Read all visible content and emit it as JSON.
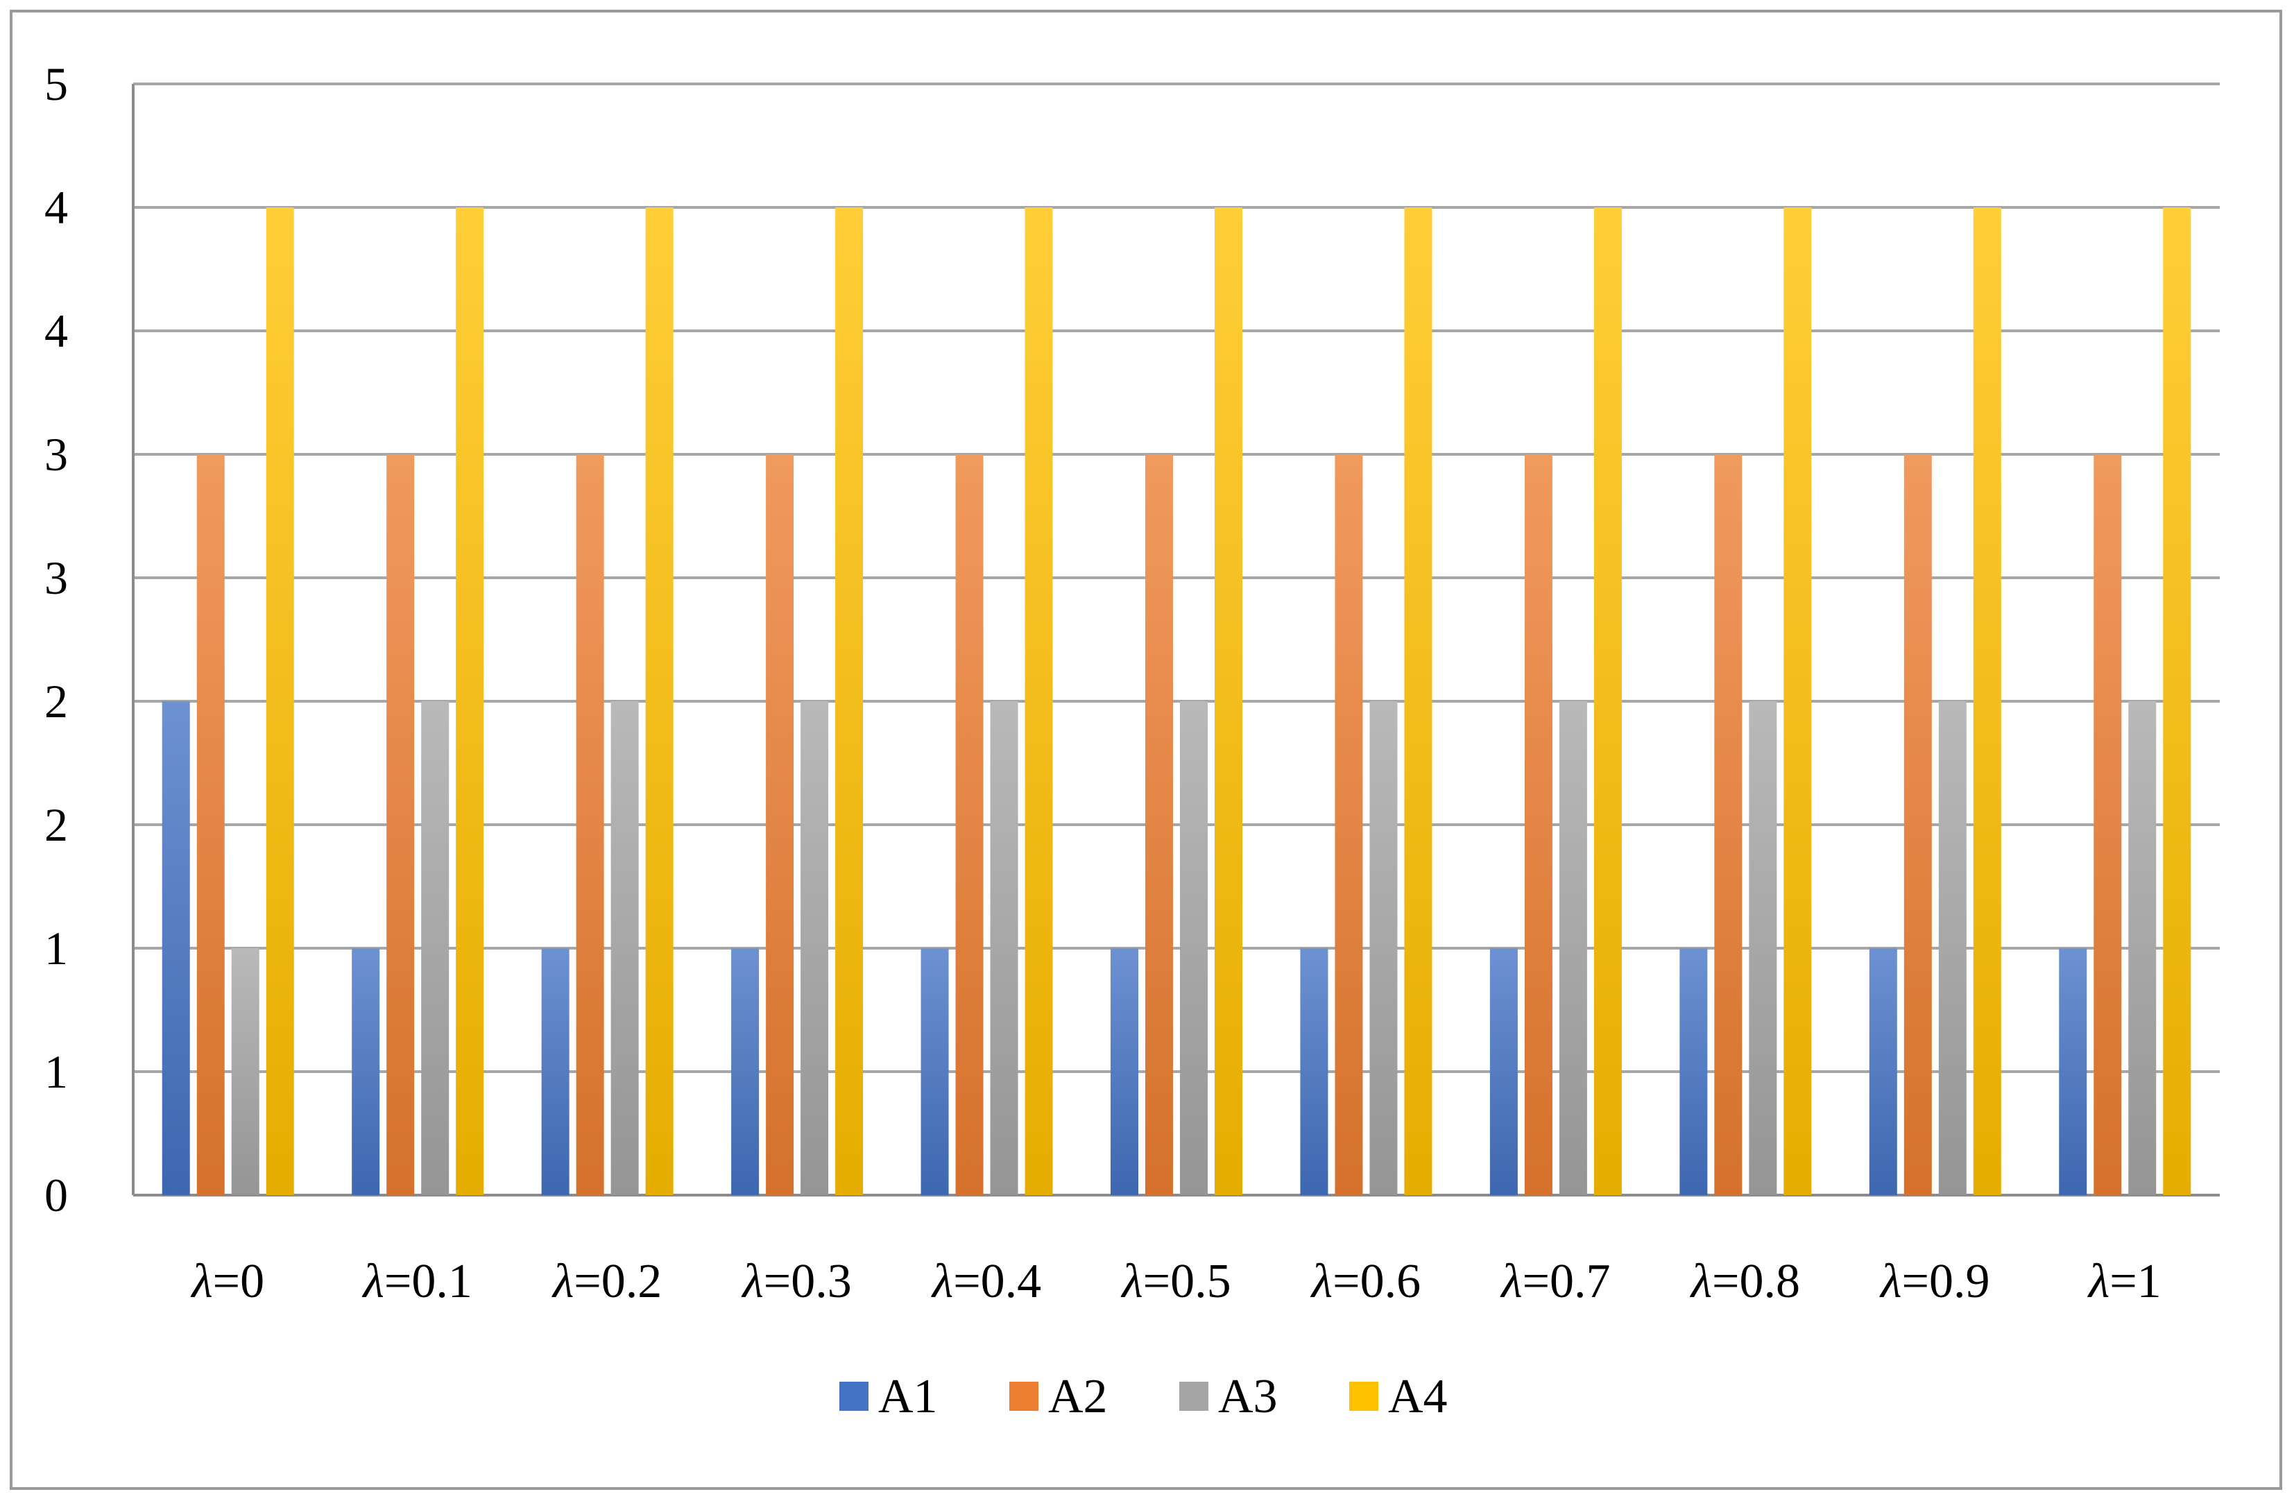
{
  "chart_data": {
    "type": "bar",
    "title": "",
    "xlabel": "",
    "ylabel": "",
    "categories_prefix": "λ",
    "categories": [
      "=0",
      "=0.1",
      "=0.2",
      "=0.3",
      "=0.4",
      "=0.5",
      "=0.6",
      "=0.7",
      "=0.8",
      "=0.9",
      "=1"
    ],
    "y_ticks": [
      "0",
      "1",
      "1",
      "2",
      "2",
      "3",
      "3",
      "4",
      "4",
      "5"
    ],
    "ylim": [
      0,
      4.5
    ],
    "grid": true,
    "legend_position": "bottom",
    "series": [
      {
        "name": "A1",
        "color": "#4472C4",
        "values": [
          2,
          1,
          1,
          1,
          1,
          1,
          1,
          1,
          1,
          1,
          1
        ]
      },
      {
        "name": "A2",
        "color": "#ED7D31",
        "values": [
          3,
          3,
          3,
          3,
          3,
          3,
          3,
          3,
          3,
          3,
          3
        ]
      },
      {
        "name": "A3",
        "color": "#A5A5A5",
        "values": [
          1,
          2,
          2,
          2,
          2,
          2,
          2,
          2,
          2,
          2,
          2
        ]
      },
      {
        "name": "A4",
        "color": "#FFC000",
        "values": [
          4,
          4,
          4,
          4,
          4,
          4,
          4,
          4,
          4,
          4,
          4
        ]
      }
    ]
  }
}
